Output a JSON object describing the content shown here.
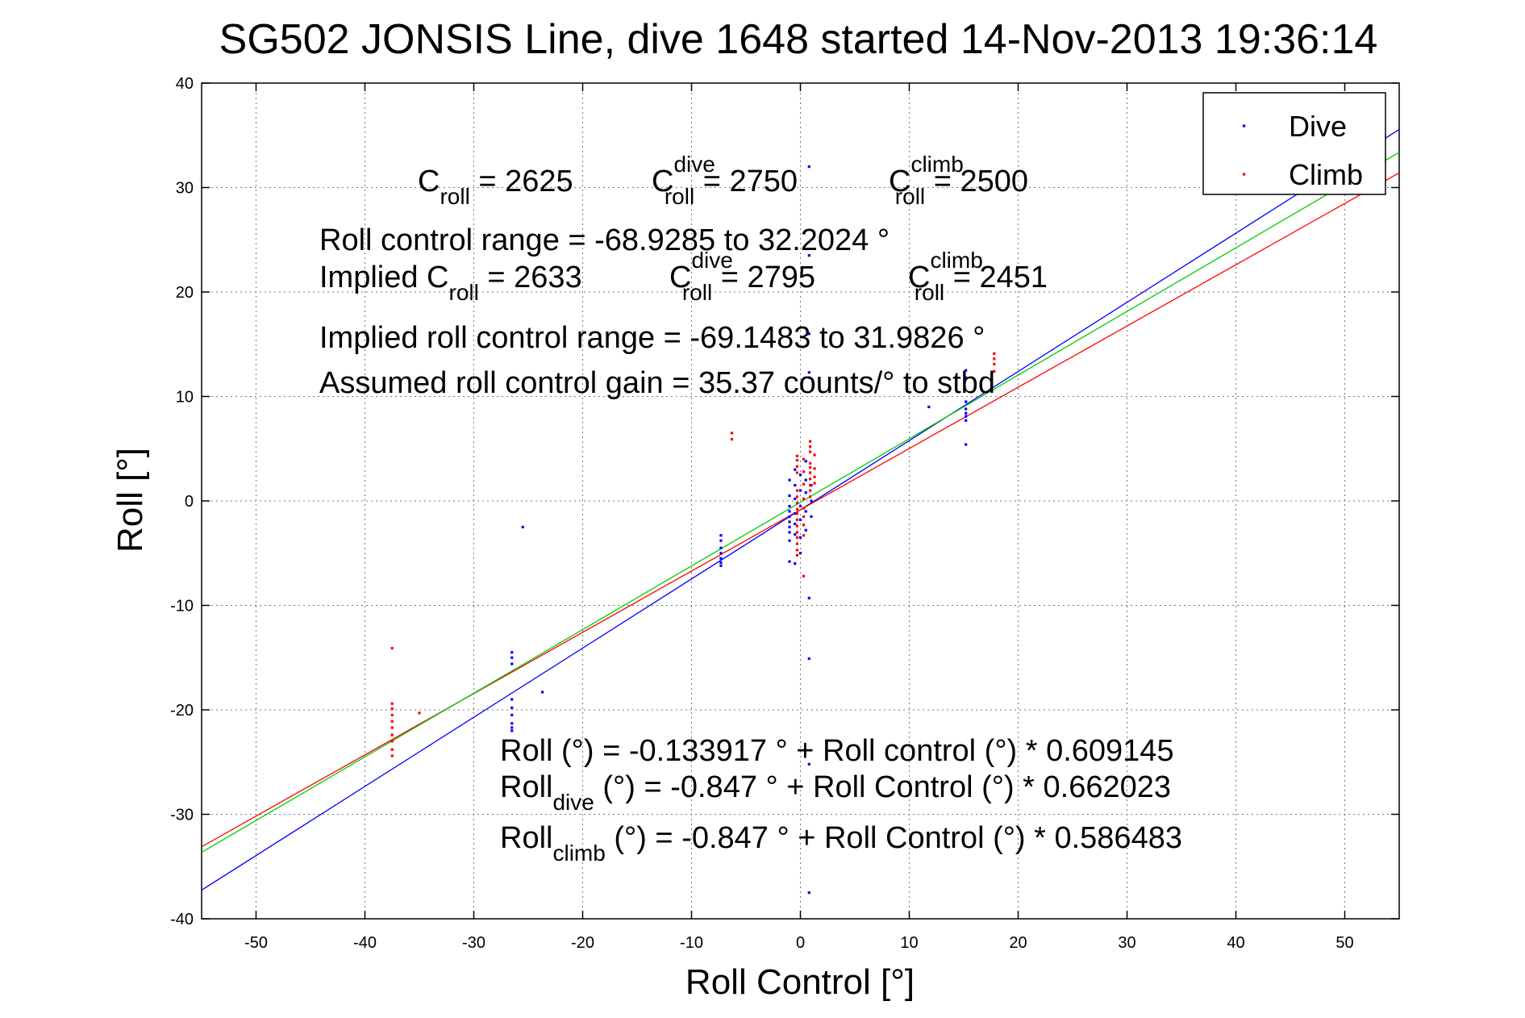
{
  "chart_data": {
    "type": "scatter",
    "title": "SG502 JONSIS Line, dive 1648 started 14-Nov-2013 19:36:14",
    "xlabel": "Roll Control [°]",
    "ylabel": "Roll [°]",
    "xlim": [
      -55,
      55
    ],
    "ylim": [
      -40,
      40
    ],
    "xticks": [
      -50,
      -40,
      -30,
      -20,
      -10,
      0,
      10,
      20,
      30,
      40,
      50
    ],
    "yticks": [
      -40,
      -30,
      -20,
      -10,
      0,
      10,
      20,
      30,
      40
    ],
    "grid": true,
    "legend_position": "top-right",
    "legend": [
      {
        "label": "Dive",
        "color": "#0000ff"
      },
      {
        "label": "Climb",
        "color": "#ff0000"
      }
    ],
    "fit_lines": [
      {
        "color": "#0000ff",
        "intercept": -0.847,
        "slope": 0.662023
      },
      {
        "color": "#ff0000",
        "intercept": -0.847,
        "slope": 0.586483
      },
      {
        "color": "#00cc00",
        "intercept": -0.133917,
        "slope": 0.609145
      }
    ],
    "series": [
      {
        "name": "Dive",
        "color": "#0000ff",
        "points": [
          [
            -26.5,
            -14.5
          ],
          [
            -26.5,
            -15.0
          ],
          [
            -26.5,
            -15.6
          ],
          [
            -26.5,
            -19.0
          ],
          [
            -26.5,
            -19.8
          ],
          [
            -26.5,
            -20.5
          ],
          [
            -26.5,
            -21.3
          ],
          [
            -26.5,
            -21.7
          ],
          [
            -26.5,
            -22.0
          ],
          [
            -25.5,
            -2.5
          ],
          [
            -23.7,
            -18.3
          ],
          [
            -7.3,
            -3.3
          ],
          [
            -7.3,
            -3.8
          ],
          [
            -7.3,
            -4.5
          ],
          [
            -7.3,
            -5.0
          ],
          [
            -7.3,
            -5.5
          ],
          [
            -7.3,
            -5.9
          ],
          [
            -7.3,
            -6.2
          ],
          [
            -1.0,
            2.0
          ],
          [
            -1.0,
            0.5
          ],
          [
            -1.0,
            -0.5
          ],
          [
            -1.0,
            -1.0
          ],
          [
            -1.0,
            -1.5
          ],
          [
            -1.0,
            -2.0
          ],
          [
            -1.0,
            -2.5
          ],
          [
            -1.0,
            -3.0
          ],
          [
            -1.0,
            -3.8
          ],
          [
            -1.0,
            -5.8
          ],
          [
            -0.5,
            3.0
          ],
          [
            -0.5,
            1.5
          ],
          [
            -0.5,
            0.2
          ],
          [
            -0.5,
            -1.2
          ],
          [
            -0.5,
            -2.2
          ],
          [
            -0.5,
            -3.2
          ],
          [
            -0.5,
            -6.0
          ],
          [
            0.0,
            2.5
          ],
          [
            0.0,
            1.0
          ],
          [
            0.0,
            -0.5
          ],
          [
            0.0,
            -1.8
          ],
          [
            0.0,
            -3.5
          ],
          [
            0.0,
            -5.0
          ],
          [
            0.5,
            3.8
          ],
          [
            0.5,
            2.0
          ],
          [
            0.5,
            0.8
          ],
          [
            0.5,
            -1.0
          ],
          [
            0.5,
            -2.8
          ],
          [
            0.8,
            32.0
          ],
          [
            0.8,
            23.5
          ],
          [
            0.8,
            16.0
          ],
          [
            0.8,
            12.3
          ],
          [
            0.8,
            11.8
          ],
          [
            0.8,
            -9.3
          ],
          [
            0.8,
            -15.1
          ],
          [
            0.8,
            -25.2
          ],
          [
            0.8,
            -37.5
          ],
          [
            1.0,
            1.5
          ],
          [
            1.0,
            0.0
          ],
          [
            1.0,
            -1.5
          ],
          [
            11.8,
            9.0
          ],
          [
            15.2,
            12.5
          ],
          [
            15.2,
            11.8
          ],
          [
            15.2,
            9.5
          ],
          [
            15.2,
            8.8
          ],
          [
            15.2,
            8.4
          ],
          [
            15.2,
            8.1
          ],
          [
            15.2,
            7.7
          ],
          [
            15.2,
            5.4
          ]
        ]
      },
      {
        "name": "Climb",
        "color": "#ff0000",
        "points": [
          [
            -37.5,
            -14.1
          ],
          [
            -37.5,
            -19.4
          ],
          [
            -37.5,
            -19.9
          ],
          [
            -37.5,
            -20.5
          ],
          [
            -37.5,
            -21.1
          ],
          [
            -37.5,
            -21.7
          ],
          [
            -37.5,
            -22.4
          ],
          [
            -37.5,
            -23.0
          ],
          [
            -37.5,
            -23.8
          ],
          [
            -37.5,
            -24.4
          ],
          [
            -35.0,
            -20.3
          ],
          [
            -6.3,
            6.5
          ],
          [
            -6.3,
            5.9
          ],
          [
            -0.3,
            4.3
          ],
          [
            -0.3,
            3.9
          ],
          [
            -0.3,
            3.3
          ],
          [
            -0.3,
            2.7
          ],
          [
            -0.3,
            1.0
          ],
          [
            -0.3,
            0.4
          ],
          [
            -0.3,
            -0.2
          ],
          [
            -0.3,
            -0.8
          ],
          [
            -0.3,
            -1.2
          ],
          [
            -0.3,
            -1.8
          ],
          [
            -0.3,
            -2.4
          ],
          [
            -0.3,
            -3.0
          ],
          [
            -0.3,
            -3.5
          ],
          [
            -0.3,
            -4.1
          ],
          [
            -0.3,
            -4.7
          ],
          [
            -0.3,
            -5.2
          ],
          [
            0.3,
            4.0
          ],
          [
            0.3,
            2.8
          ],
          [
            0.3,
            1.6
          ],
          [
            0.3,
            0.2
          ],
          [
            0.3,
            -0.7
          ],
          [
            0.3,
            -1.5
          ],
          [
            0.3,
            -2.3
          ],
          [
            0.3,
            -3.3
          ],
          [
            0.3,
            -7.2
          ],
          [
            0.9,
            5.7
          ],
          [
            0.9,
            5.2
          ],
          [
            0.9,
            4.7
          ],
          [
            0.9,
            3.6
          ],
          [
            0.9,
            3.2
          ],
          [
            0.9,
            2.7
          ],
          [
            0.9,
            2.1
          ],
          [
            0.9,
            1.5
          ],
          [
            0.9,
            1.0
          ],
          [
            0.9,
            0.4
          ],
          [
            1.3,
            4.4
          ],
          [
            1.3,
            3.1
          ],
          [
            1.3,
            2.3
          ],
          [
            1.3,
            1.7
          ],
          [
            17.8,
            14.1
          ],
          [
            17.8,
            13.6
          ],
          [
            17.8,
            13.1
          ],
          [
            17.8,
            12.4
          ]
        ]
      }
    ],
    "annotations": {
      "row1": [
        {
          "base": "C",
          "sub": "roll",
          "sup": "",
          "rest": " = 2625"
        },
        {
          "base": "C",
          "sub": "roll",
          "sup": "dive",
          "rest": " = 2750"
        },
        {
          "base": "C",
          "sub": "roll",
          "sup": "climb",
          "rest": " = 2500"
        }
      ],
      "range_line": "Roll control range = -68.9285 to 32.2024 °",
      "row2": [
        {
          "base": "Implied C",
          "sub": "roll",
          "sup": "",
          "rest": " = 2633"
        },
        {
          "base": "C",
          "sub": "roll",
          "sup": "dive",
          "rest": " = 2795"
        },
        {
          "base": "C",
          "sub": "roll",
          "sup": "climb",
          "rest": " = 2451"
        }
      ],
      "implied_range_line": "Implied roll control range = -69.1483 to 31.9826 °",
      "gain_line": "Assumed roll control gain = 35.37 counts/° to stbd",
      "eq_all": "Roll (°) = -0.133917 ° + Roll control (°) * 0.609145",
      "eq_dive": {
        "base": "Roll",
        "sub": "dive",
        "rest": " (°) = -0.847 ° + Roll Control (°) * 0.662023"
      },
      "eq_climb": {
        "base": "Roll",
        "sub": "climb",
        "rest": " (°) = -0.847 ° + Roll Control (°) * 0.586483"
      }
    }
  }
}
